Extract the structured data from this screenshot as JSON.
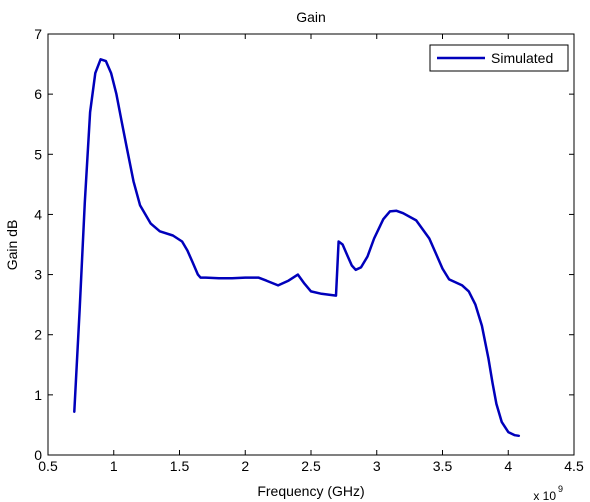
{
  "chart_data": {
    "type": "line",
    "title": "Gain",
    "xlabel": "Frequency (GHz)",
    "ylabel": "Gain dB",
    "xlim": [
      500000000,
      4500000000
    ],
    "ylim": [
      0,
      7
    ],
    "x_ticks": [
      500000000,
      1000000000,
      1500000000,
      2000000000,
      2500000000,
      3000000000,
      3500000000,
      4000000000,
      4500000000
    ],
    "x_tick_labels": [
      "0.5",
      "1",
      "1.5",
      "2",
      "2.5",
      "3",
      "3.5",
      "4",
      "4.5"
    ],
    "y_ticks": [
      0,
      1,
      2,
      3,
      4,
      5,
      6,
      7
    ],
    "y_tick_labels": [
      "0",
      "1",
      "2",
      "3",
      "4",
      "5",
      "6",
      "7"
    ],
    "x_multiplier": {
      "base": "x 10",
      "exponent": "9"
    },
    "legend_position": "top-right",
    "grid": false,
    "series": [
      {
        "name": "Simulated",
        "color": "#0000bb",
        "x": [
          700000000,
          740000000,
          780000000,
          820000000,
          860000000,
          900000000,
          940000000,
          980000000,
          1020000000,
          1060000000,
          1100000000,
          1150000000,
          1200000000,
          1280000000,
          1350000000,
          1450000000,
          1520000000,
          1560000000,
          1600000000,
          1640000000,
          1660000000,
          1700000000,
          1800000000,
          1900000000,
          2000000000,
          2100000000,
          2160000000,
          2250000000,
          2330000000,
          2400000000,
          2450000000,
          2500000000,
          2580000000,
          2690000000,
          2700000000,
          2710000000,
          2740000000,
          2780000000,
          2810000000,
          2840000000,
          2880000000,
          2930000000,
          2980000000,
          3050000000,
          3100000000,
          3150000000,
          3200000000,
          3300000000,
          3400000000,
          3450000000,
          3500000000,
          3550000000,
          3650000000,
          3700000000,
          3750000000,
          3800000000,
          3850000000,
          3880000000,
          3910000000,
          3950000000,
          4000000000,
          4050000000,
          4080000000
        ],
        "y": [
          0.72,
          2.4,
          4.2,
          5.7,
          6.35,
          6.58,
          6.55,
          6.35,
          6.0,
          5.55,
          5.1,
          4.55,
          4.15,
          3.85,
          3.72,
          3.65,
          3.55,
          3.4,
          3.2,
          3.0,
          2.95,
          2.95,
          2.94,
          2.94,
          2.95,
          2.95,
          2.9,
          2.82,
          2.9,
          3.0,
          2.85,
          2.72,
          2.68,
          2.65,
          3.1,
          3.55,
          3.5,
          3.3,
          3.15,
          3.08,
          3.12,
          3.3,
          3.6,
          3.92,
          4.05,
          4.06,
          4.02,
          3.9,
          3.6,
          3.35,
          3.1,
          2.92,
          2.82,
          2.72,
          2.5,
          2.15,
          1.6,
          1.2,
          0.85,
          0.55,
          0.38,
          0.33,
          0.32
        ]
      }
    ]
  }
}
